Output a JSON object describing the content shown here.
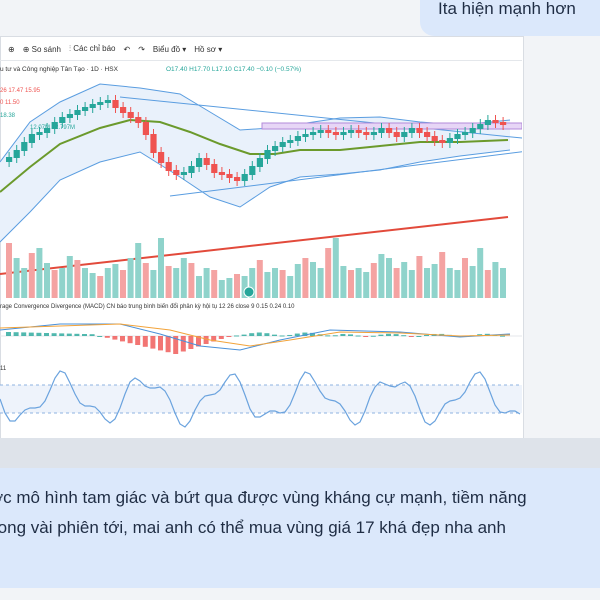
{
  "top_message": "Ita hiện mạnh hơn",
  "toolbar": {
    "compare": "So sánh",
    "indicators": "Các chỉ báo",
    "charts": "Biểu đồ",
    "more": "Hồ sơ"
  },
  "chart_header": {
    "title": "u tư và Công nghiệp Tân Tạo · 1D · HSX",
    "ohlc": "O17.40 H17.70 L17.10 C17.40 −0.10 (−0.57%)",
    "line2": "26  17.47  15.95",
    "line3": "0  11.50",
    "line4": "18.38",
    "line5": "12.07M  12.797M"
  },
  "macd_label": "rage Convergence Divergence (MACD)  CN báo trung bình biến đổi phân kỳ hội tụ 12 26 close 9  0.15  0.24  0.10",
  "rsi_label": "11",
  "message": {
    "line1": "ợc mô hình tam giác và bứt qua được vùng kháng cự mạnh, tiềm năng",
    "line2": "rong vài phiên tới, mai anh có thể mua vùng giá 17 khá đẹp nha anh"
  },
  "colors": {
    "up": "#26a69a",
    "down": "#ef5350",
    "ma": "#6b9a2c",
    "band": "#5a9de0",
    "resistance": "#b38bd9",
    "macd_signal": "#f2a33a",
    "trendline": "#e24a3b"
  }
}
